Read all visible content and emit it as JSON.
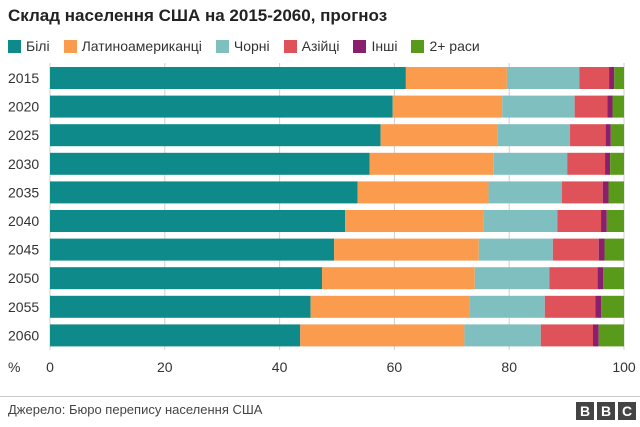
{
  "title": "Склад населення США на 2015-2060, прогноз",
  "source": "Джерело: Бюро перепису населення США",
  "logo_letters": [
    "B",
    "B",
    "C"
  ],
  "chart_data": {
    "type": "bar",
    "orientation": "horizontal",
    "stacked": true,
    "categories": [
      "2015",
      "2020",
      "2025",
      "2030",
      "2035",
      "2040",
      "2045",
      "2050",
      "2055",
      "2060"
    ],
    "series": [
      {
        "name": "Білі",
        "color": "#0f8a8a",
        "values": [
          62,
          59.7,
          57.6,
          55.7,
          53.6,
          51.4,
          49.5,
          47.4,
          45.4,
          43.6
        ]
      },
      {
        "name": "Латиноамериканці",
        "color": "#fa9b4e",
        "values": [
          17.6,
          19.1,
          20.3,
          21.6,
          22.8,
          24.1,
          25.2,
          26.6,
          27.7,
          28.6
        ]
      },
      {
        "name": "Чорні",
        "color": "#7fbfbf",
        "values": [
          12.6,
          12.6,
          12.7,
          12.8,
          12.8,
          12.9,
          12.9,
          13.0,
          13.1,
          13.3
        ]
      },
      {
        "name": "Азійці",
        "color": "#e0525a",
        "values": [
          5.2,
          5.7,
          6.2,
          6.6,
          7.1,
          7.6,
          8.0,
          8.4,
          8.8,
          9.1
        ]
      },
      {
        "name": "Інші",
        "color": "#8a1f6e",
        "values": [
          0.9,
          0.9,
          0.9,
          0.9,
          1.0,
          1.0,
          1.0,
          1.0,
          1.0,
          1.0
        ]
      },
      {
        "name": "2+ раси",
        "color": "#5a9a1a",
        "values": [
          1.7,
          2.0,
          2.3,
          2.4,
          2.7,
          3.0,
          3.4,
          3.6,
          4.0,
          4.4
        ]
      }
    ],
    "x_axis_label": "%",
    "xticks": [
      0,
      20,
      40,
      60,
      80,
      100
    ],
    "xlim": [
      0,
      100
    ],
    "grid": "vertical",
    "legend_position": "top"
  }
}
